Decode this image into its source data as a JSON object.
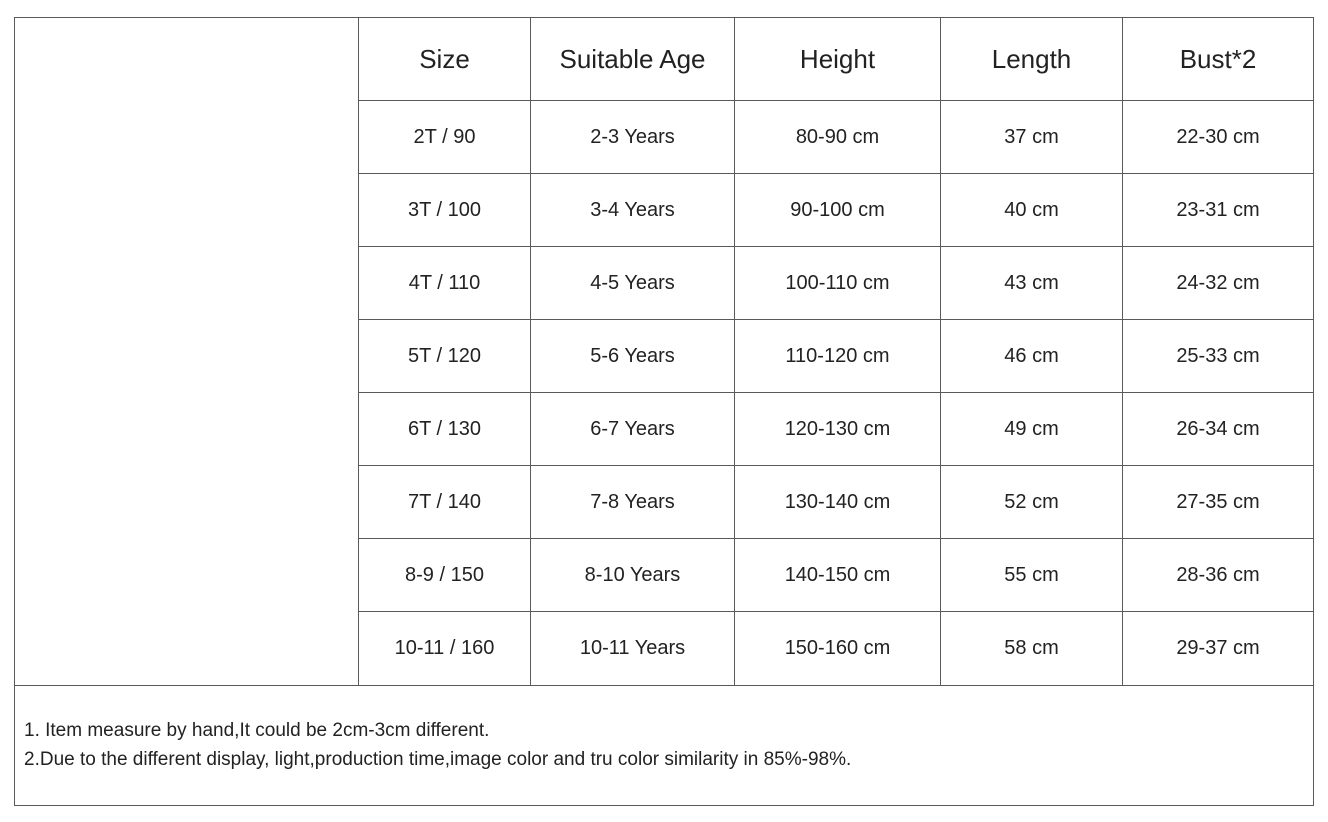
{
  "table": {
    "header": [
      "Size",
      "Suitable Age",
      "Height",
      "Length",
      "Bust*2"
    ],
    "rows": [
      [
        "2T / 90",
        "2-3 Years",
        "80-90 cm",
        "37 cm",
        "22-30 cm"
      ],
      [
        "3T / 100",
        "3-4 Years",
        "90-100 cm",
        "40 cm",
        "23-31 cm"
      ],
      [
        "4T / 110",
        "4-5 Years",
        "100-110 cm",
        "43 cm",
        "24-32 cm"
      ],
      [
        "5T / 120",
        "5-6 Years",
        "110-120 cm",
        "46 cm",
        "25-33 cm"
      ],
      [
        "6T / 130",
        "6-7 Years",
        "120-130 cm",
        "49 cm",
        "26-34 cm"
      ],
      [
        "7T / 140",
        "7-8 Years",
        "130-140 cm",
        "52 cm",
        "27-35 cm"
      ],
      [
        "8-9 / 150",
        "8-10 Years",
        "140-150 cm",
        "55 cm",
        "28-36 cm"
      ],
      [
        "10-11 / 160",
        "10-11 Years",
        "150-160 cm",
        "58 cm",
        "29-37 cm"
      ]
    ]
  },
  "notes": [
    "1. Item measure by hand,It could be 2cm-3cm different.",
    "2.Due to the different display, light,production time,image color and tru color similarity in 85%-98%."
  ]
}
